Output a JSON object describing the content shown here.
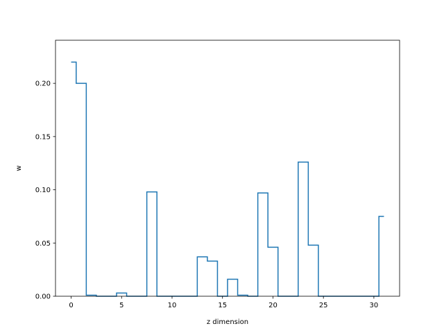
{
  "chart_data": {
    "type": "step",
    "title": "",
    "xlabel": "z dimension",
    "ylabel": "w",
    "xlim": [
      -1.55,
      32.55
    ],
    "ylim": [
      0.0,
      0.2405
    ],
    "x_ticks": [
      0,
      5,
      10,
      15,
      20,
      25,
      30
    ],
    "x_tick_labels": [
      "0",
      "5",
      "10",
      "15",
      "20",
      "25",
      "30"
    ],
    "y_ticks": [
      0.0,
      0.05,
      0.1,
      0.15,
      0.2
    ],
    "y_tick_labels": [
      "0.00",
      "0.05",
      "0.10",
      "0.15",
      "0.20"
    ],
    "grid": false,
    "legend": "none",
    "step_where": "mid",
    "series": [
      {
        "color": "#1f77b4",
        "x": [
          0,
          1,
          2,
          3,
          4,
          5,
          6,
          7,
          8,
          9,
          10,
          11,
          12,
          13,
          14,
          15,
          16,
          17,
          18,
          19,
          20,
          21,
          22,
          23,
          24,
          25,
          26,
          27,
          28,
          29,
          30,
          31
        ],
        "values": [
          0.22,
          0.2,
          0.001,
          0.0,
          0.0,
          0.003,
          0.0,
          0.0,
          0.098,
          0.0,
          0.0,
          0.0,
          0.0,
          0.037,
          0.033,
          0.0,
          0.016,
          0.001,
          0.0,
          0.097,
          0.046,
          0.0,
          0.0,
          0.126,
          0.048,
          0.0,
          0.0,
          0.0,
          0.0,
          0.0,
          0.0,
          0.075
        ]
      }
    ]
  }
}
